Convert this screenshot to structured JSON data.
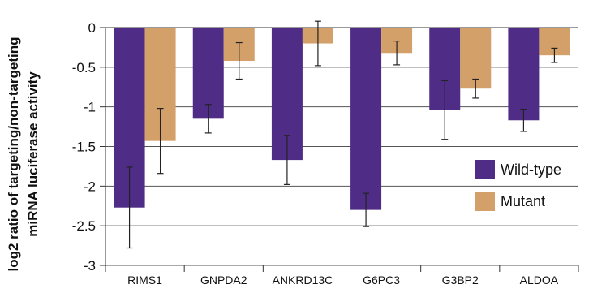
{
  "chart_data": {
    "type": "bar",
    "title": "",
    "xlabel": "",
    "ylabel": {
      "line1": "log2 ratio of targeting/non-targeting",
      "line2": "miRNA luciferase activity"
    },
    "ylim": [
      -3,
      0
    ],
    "yticks": [
      0,
      -0.5,
      -1,
      -1.5,
      -2,
      -2.5,
      -3
    ],
    "ytick_labels": [
      "0",
      "-0.5",
      "-1",
      "-1.5",
      "-2",
      "-2.5",
      "-3"
    ],
    "grid": "horizontal",
    "legend_position": "bottom-right",
    "categories": [
      "RIMS1",
      "GNPDA2",
      "ANKRD13C",
      "G6PC3",
      "G3BP2",
      "ALDOA"
    ],
    "series": [
      {
        "name": "Wild-type",
        "color": "#4f2d86",
        "values": [
          -2.27,
          -1.15,
          -1.67,
          -2.3,
          -1.04,
          -1.17
        ],
        "error": [
          0.51,
          0.18,
          0.31,
          0.21,
          0.37,
          0.14
        ]
      },
      {
        "name": "Mutant",
        "color": "#d4a06a",
        "values": [
          -1.43,
          -0.42,
          -0.2,
          -0.32,
          -0.77,
          -0.35
        ],
        "error": [
          0.41,
          0.23,
          0.28,
          0.15,
          0.12,
          0.09
        ]
      }
    ]
  }
}
